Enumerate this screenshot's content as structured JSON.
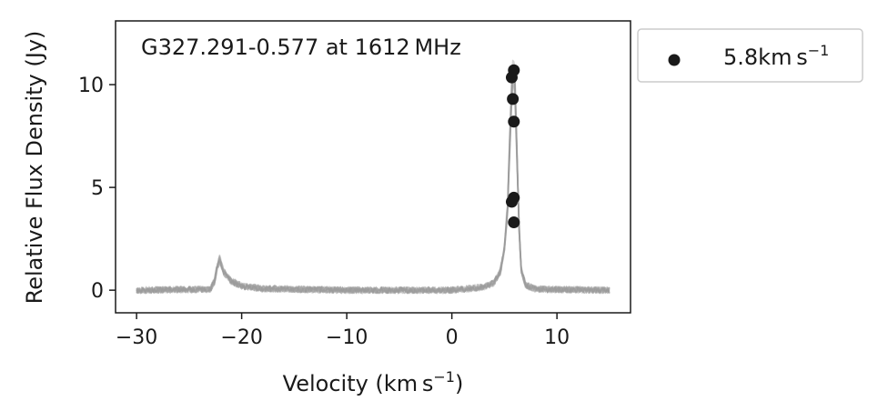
{
  "chart_data": {
    "type": "scatter",
    "title": "G327.291-0.577 at 1612 MHz",
    "xlabel": "Velocity (km s",
    "xlabel_sup": "−1",
    "xlabel_end": ")",
    "ylabel": "Relative Flux Density (Jy)",
    "xlim": [
      -32,
      17
    ],
    "ylim": [
      -1.1,
      13.1
    ],
    "xticks": [
      -30,
      -20,
      -10,
      0,
      10
    ],
    "xtick_labels": [
      "−30",
      "−20",
      "−10",
      "0",
      "10"
    ],
    "yticks": [
      0,
      5,
      10
    ],
    "ytick_labels": [
      "0",
      "5",
      "10"
    ],
    "grid": false,
    "legend_placement": "outside-top-right",
    "legend": [
      {
        "label": "5.8km s",
        "label_sup": "−1",
        "marker": "circle",
        "color": "#1a1a1a"
      }
    ],
    "spectrum": {
      "color": "#9a9a9a",
      "profile": [
        [
          -30.0,
          0.0
        ],
        [
          -23.0,
          0.05
        ],
        [
          -22.6,
          0.4
        ],
        [
          -22.3,
          1.2
        ],
        [
          -22.1,
          1.5
        ],
        [
          -21.7,
          0.9
        ],
        [
          -21.0,
          0.45
        ],
        [
          -20.0,
          0.2
        ],
        [
          -18.0,
          0.08
        ],
        [
          -10.0,
          0.0
        ],
        [
          0.0,
          0.0
        ],
        [
          3.0,
          0.15
        ],
        [
          4.0,
          0.35
        ],
        [
          4.6,
          0.9
        ],
        [
          5.0,
          2.0
        ],
        [
          5.3,
          4.0
        ],
        [
          5.5,
          7.0
        ],
        [
          5.7,
          9.8
        ],
        [
          5.85,
          10.8
        ],
        [
          6.0,
          10.0
        ],
        [
          6.2,
          6.5
        ],
        [
          6.4,
          3.0
        ],
        [
          6.6,
          1.0
        ],
        [
          7.0,
          0.25
        ],
        [
          8.0,
          0.05
        ],
        [
          15.0,
          0.0
        ]
      ]
    },
    "points": [
      {
        "x": 5.9,
        "y": 10.7
      },
      {
        "x": 5.7,
        "y": 10.35
      },
      {
        "x": 5.8,
        "y": 9.3
      },
      {
        "x": 5.9,
        "y": 8.2
      },
      {
        "x": 5.9,
        "y": 4.5
      },
      {
        "x": 5.7,
        "y": 4.3
      },
      {
        "x": 5.9,
        "y": 3.3
      }
    ]
  }
}
